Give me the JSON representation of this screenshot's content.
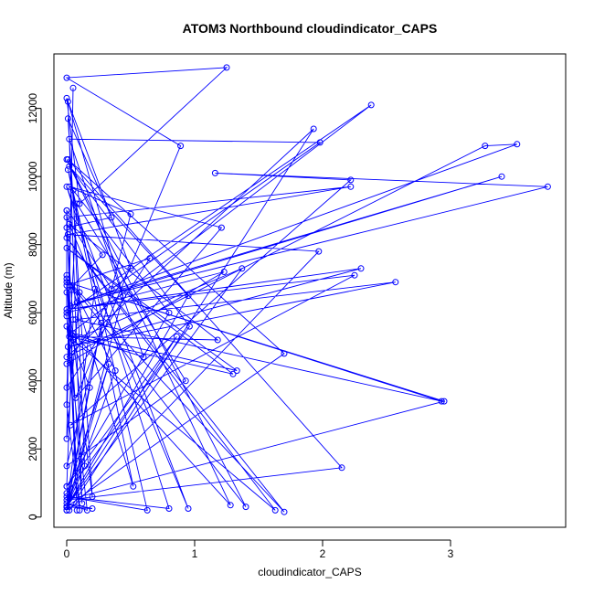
{
  "chart_data": {
    "type": "line",
    "title": "ATOM3 Northbound cloudindicator_CAPS",
    "xlabel": "cloudindicator_CAPS",
    "ylabel": "Altitude (m)",
    "xlim": [
      -0.1,
      3.9
    ],
    "ylim": [
      -300,
      13600
    ],
    "xticks": [
      0,
      1,
      2,
      3
    ],
    "yticks": [
      0,
      2000,
      4000,
      6000,
      8000,
      10000,
      12000
    ],
    "grid": false,
    "legend": "none",
    "series": [
      {
        "color": "#0000ff",
        "marker": "open-circle",
        "points": [
          [
            0.0,
            200
          ],
          [
            0.0,
            300
          ],
          [
            0.02,
            600
          ],
          [
            0.0,
            900
          ],
          [
            0.05,
            5800
          ],
          [
            0.0,
            8500
          ],
          [
            0.35,
            8800
          ],
          [
            0.01,
            11700
          ],
          [
            0.2,
            600
          ],
          [
            0.0,
            6800
          ],
          [
            0.65,
            7600
          ],
          [
            0.0,
            3800
          ],
          [
            0.08,
            9200
          ],
          [
            0.93,
            4000
          ],
          [
            0.0,
            1500
          ],
          [
            0.5,
            8900
          ],
          [
            0.02,
            9700
          ],
          [
            1.21,
            8500
          ],
          [
            0.07,
            3500
          ],
          [
            0.89,
            10900
          ],
          [
            0.0,
            12900
          ],
          [
            1.25,
            13200
          ],
          [
            0.1,
            9200
          ],
          [
            0.0,
            12300
          ],
          [
            0.5,
            7300
          ],
          [
            0.0,
            4500
          ],
          [
            1.23,
            7200
          ],
          [
            0.0,
            6000
          ],
          [
            2.38,
            12100
          ],
          [
            0.03,
            5400
          ],
          [
            0.6,
            4700
          ],
          [
            0.02,
            11100
          ],
          [
            1.98,
            11000
          ],
          [
            0.35,
            6700
          ],
          [
            0.0,
            8800
          ],
          [
            2.22,
            9700
          ],
          [
            0.01,
            8300
          ],
          [
            1.97,
            7800
          ],
          [
            0.02,
            200
          ],
          [
            1.93,
            11400
          ],
          [
            0.0,
            4700
          ],
          [
            3.27,
            10900
          ],
          [
            3.52,
            10950
          ],
          [
            0.03,
            6200
          ],
          [
            3.4,
            10000
          ],
          [
            0.08,
            6300
          ],
          [
            3.76,
            9700
          ],
          [
            1.16,
            10100
          ],
          [
            2.22,
            9900
          ],
          [
            0.03,
            2700
          ],
          [
            2.25,
            7100
          ],
          [
            0.0,
            6100
          ],
          [
            2.3,
            7300
          ],
          [
            0.01,
            5000
          ],
          [
            2.57,
            6900
          ],
          [
            0.07,
            5800
          ],
          [
            2.93,
            3400
          ],
          [
            0.0,
            6900
          ],
          [
            2.95,
            3400
          ],
          [
            0.0,
            500
          ],
          [
            2.15,
            1450
          ],
          [
            0.01,
            10500
          ],
          [
            1.7,
            4800
          ],
          [
            0.0,
            300
          ],
          [
            1.37,
            7300
          ],
          [
            0.05,
            5200
          ],
          [
            1.63,
            200
          ],
          [
            0.0,
            8200
          ],
          [
            1.7,
            150
          ],
          [
            0.0,
            7000
          ],
          [
            1.4,
            300
          ],
          [
            0.0,
            10500
          ],
          [
            1.28,
            350
          ],
          [
            0.05,
            5400
          ],
          [
            1.33,
            4300
          ],
          [
            0.0,
            7900
          ],
          [
            1.3,
            4200
          ],
          [
            0.02,
            5300
          ],
          [
            1.18,
            5200
          ],
          [
            0.02,
            8600
          ],
          [
            0.95,
            250
          ],
          [
            0.0,
            9700
          ],
          [
            0.8,
            250
          ],
          [
            0.0,
            600
          ],
          [
            0.63,
            200
          ],
          [
            0.01,
            10200
          ],
          [
            0.52,
            900
          ],
          [
            0.04,
            6800
          ],
          [
            0.38,
            4300
          ],
          [
            0.0,
            300
          ],
          [
            0.2,
            250
          ],
          [
            0.0,
            400
          ],
          [
            0.16,
            200
          ],
          [
            0.0,
            5600
          ],
          [
            0.18,
            3800
          ],
          [
            0.0,
            300
          ],
          [
            0.22,
            6700
          ],
          [
            0.0,
            300
          ],
          [
            0.14,
            1500
          ],
          [
            0.05,
            9600
          ],
          [
            0.8,
            6000
          ],
          [
            0.0,
            900
          ],
          [
            0.86,
            5300
          ],
          [
            0.0,
            300
          ],
          [
            0.95,
            6500
          ],
          [
            0.02,
            10300
          ],
          [
            0.96,
            5600
          ],
          [
            0.0,
            700
          ],
          [
            0.33,
            4500
          ],
          [
            0.0,
            300
          ],
          [
            0.27,
            5700
          ],
          [
            0.0,
            200
          ],
          [
            0.44,
            6500
          ],
          [
            0.01,
            12200
          ],
          [
            0.12,
            400
          ],
          [
            0.0,
            7100
          ],
          [
            0.08,
            200
          ],
          [
            0.0,
            9000
          ],
          [
            0.28,
            7700
          ],
          [
            0.0,
            6600
          ],
          [
            0.1,
            6600
          ],
          [
            0.0,
            2300
          ],
          [
            0.05,
            12600
          ],
          [
            0.0,
            3300
          ],
          [
            0.1,
            200
          ],
          [
            0.0,
            5900
          ],
          [
            0.0,
            9000
          ]
        ]
      }
    ]
  }
}
